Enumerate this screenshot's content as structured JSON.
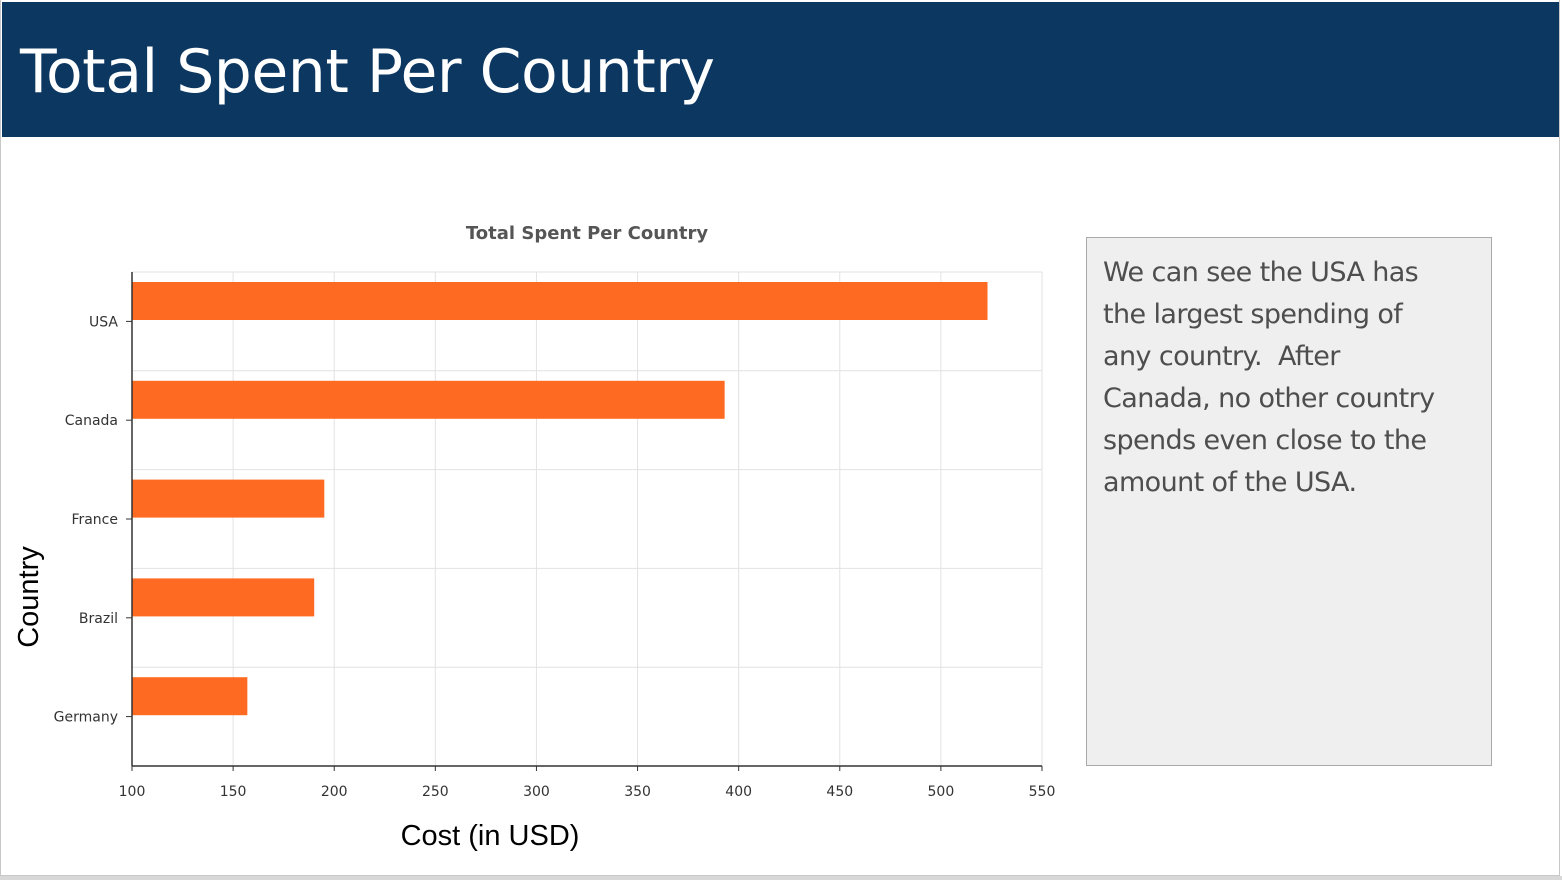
{
  "slide": {
    "title": "Total Spent Per Country",
    "note": "We can see the USA has\nthe largest spending of\nany country.  After\nCanada, no other country\nspends even close to the\namount of the USA."
  },
  "colors": {
    "header": "#0c3761",
    "bar": "#ff6a22",
    "grid": "#e2e2e2",
    "axis": "#333333"
  },
  "chart_data": {
    "type": "bar",
    "orientation": "horizontal",
    "title": "Total Spent Per Country",
    "xlabel": "Cost (in USD)",
    "ylabel": "Country",
    "categories": [
      "USA",
      "Canada",
      "France",
      "Brazil",
      "Germany"
    ],
    "values": [
      523.06,
      393.06,
      195.1,
      190.1,
      157.04
    ],
    "xlim": [
      100,
      550
    ],
    "xticks": [
      "100",
      "150",
      "200",
      "250",
      "300",
      "350",
      "400",
      "450",
      "500",
      "550"
    ],
    "grid": true,
    "legend": false
  }
}
